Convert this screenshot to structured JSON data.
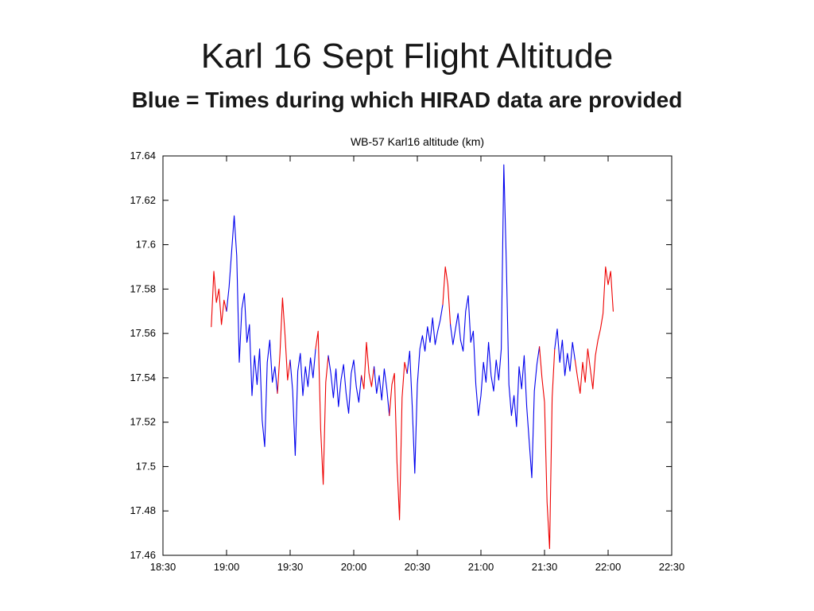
{
  "slide": {
    "title": "Karl 16 Sept Flight Altitude",
    "subtitle": "Blue = Times during which HIRAD data are provided"
  },
  "chart_data": {
    "type": "line",
    "title": "WB-57 Karl16 altitude (km)",
    "xlabel": "",
    "ylabel": "",
    "xlim": [
      18.5,
      22.5
    ],
    "ylim": [
      17.46,
      17.64
    ],
    "grid": false,
    "x_ticks": {
      "values": [
        18.5,
        19.0,
        19.5,
        20.0,
        20.5,
        21.0,
        21.5,
        22.0,
        22.5
      ],
      "labels": [
        "18:30",
        "19:00",
        "19:30",
        "20:00",
        "20:30",
        "21:00",
        "21:30",
        "22:00",
        "22:30"
      ]
    },
    "y_ticks": {
      "values": [
        17.46,
        17.48,
        17.5,
        17.52,
        17.54,
        17.56,
        17.58,
        17.6,
        17.62,
        17.64
      ],
      "labels": [
        "17.46",
        "17.48",
        "17.5",
        "17.52",
        "17.54",
        "17.56",
        "17.58",
        "17.6",
        "17.62",
        "17.64"
      ]
    },
    "colors": {
      "hirad_provided": "#0000ee",
      "no_hirad": "#ee0000",
      "axis": "#000000"
    },
    "red_intervals": [
      [
        18.88,
        19.005
      ],
      [
        19.41,
        19.5
      ],
      [
        19.69,
        19.79
      ],
      [
        20.07,
        20.15
      ],
      [
        20.29,
        20.41
      ],
      [
        20.69,
        20.77
      ],
      [
        21.47,
        21.57
      ],
      [
        21.73,
        22.04
      ]
    ],
    "series": [
      {
        "name": "WB-57 altitude",
        "points": [
          [
            18.88,
            17.563
          ],
          [
            18.9,
            17.588
          ],
          [
            18.92,
            17.574
          ],
          [
            18.94,
            17.58
          ],
          [
            18.96,
            17.564
          ],
          [
            18.98,
            17.575
          ],
          [
            19.0,
            17.57
          ],
          [
            19.02,
            17.581
          ],
          [
            19.04,
            17.597
          ],
          [
            19.06,
            17.613
          ],
          [
            19.08,
            17.595
          ],
          [
            19.1,
            17.547
          ],
          [
            19.12,
            17.571
          ],
          [
            19.14,
            17.578
          ],
          [
            19.16,
            17.556
          ],
          [
            19.18,
            17.564
          ],
          [
            19.2,
            17.532
          ],
          [
            19.22,
            17.55
          ],
          [
            19.24,
            17.537
          ],
          [
            19.26,
            17.553
          ],
          [
            19.28,
            17.521
          ],
          [
            19.3,
            17.509
          ],
          [
            19.32,
            17.547
          ],
          [
            19.34,
            17.557
          ],
          [
            19.36,
            17.538
          ],
          [
            19.38,
            17.545
          ],
          [
            19.4,
            17.533
          ],
          [
            19.42,
            17.551
          ],
          [
            19.44,
            17.576
          ],
          [
            19.46,
            17.559
          ],
          [
            19.48,
            17.539
          ],
          [
            19.5,
            17.548
          ],
          [
            19.52,
            17.534
          ],
          [
            19.54,
            17.505
          ],
          [
            19.56,
            17.543
          ],
          [
            19.58,
            17.551
          ],
          [
            19.6,
            17.532
          ],
          [
            19.62,
            17.545
          ],
          [
            19.64,
            17.536
          ],
          [
            19.66,
            17.549
          ],
          [
            19.68,
            17.54
          ],
          [
            19.7,
            17.553
          ],
          [
            19.72,
            17.561
          ],
          [
            19.74,
            17.517
          ],
          [
            19.76,
            17.492
          ],
          [
            19.78,
            17.538
          ],
          [
            19.8,
            17.55
          ],
          [
            19.82,
            17.542
          ],
          [
            19.84,
            17.531
          ],
          [
            19.86,
            17.544
          ],
          [
            19.88,
            17.527
          ],
          [
            19.9,
            17.539
          ],
          [
            19.92,
            17.546
          ],
          [
            19.94,
            17.533
          ],
          [
            19.96,
            17.524
          ],
          [
            19.98,
            17.542
          ],
          [
            20.0,
            17.548
          ],
          [
            20.02,
            17.536
          ],
          [
            20.04,
            17.529
          ],
          [
            20.06,
            17.541
          ],
          [
            20.08,
            17.535
          ],
          [
            20.1,
            17.556
          ],
          [
            20.12,
            17.542
          ],
          [
            20.14,
            17.536
          ],
          [
            20.16,
            17.545
          ],
          [
            20.18,
            17.533
          ],
          [
            20.2,
            17.541
          ],
          [
            20.22,
            17.53
          ],
          [
            20.24,
            17.544
          ],
          [
            20.26,
            17.535
          ],
          [
            20.28,
            17.523
          ],
          [
            20.3,
            17.537
          ],
          [
            20.32,
            17.542
          ],
          [
            20.34,
            17.502
          ],
          [
            20.36,
            17.476
          ],
          [
            20.38,
            17.531
          ],
          [
            20.4,
            17.547
          ],
          [
            20.42,
            17.542
          ],
          [
            20.44,
            17.552
          ],
          [
            20.46,
            17.527
          ],
          [
            20.48,
            17.497
          ],
          [
            20.5,
            17.537
          ],
          [
            20.52,
            17.553
          ],
          [
            20.54,
            17.559
          ],
          [
            20.56,
            17.552
          ],
          [
            20.58,
            17.563
          ],
          [
            20.6,
            17.556
          ],
          [
            20.62,
            17.567
          ],
          [
            20.64,
            17.555
          ],
          [
            20.66,
            17.561
          ],
          [
            20.68,
            17.566
          ],
          [
            20.7,
            17.573
          ],
          [
            20.72,
            17.59
          ],
          [
            20.74,
            17.582
          ],
          [
            20.76,
            17.564
          ],
          [
            20.78,
            17.555
          ],
          [
            20.8,
            17.562
          ],
          [
            20.82,
            17.569
          ],
          [
            20.84,
            17.557
          ],
          [
            20.86,
            17.552
          ],
          [
            20.88,
            17.57
          ],
          [
            20.9,
            17.577
          ],
          [
            20.92,
            17.556
          ],
          [
            20.94,
            17.561
          ],
          [
            20.96,
            17.537
          ],
          [
            20.98,
            17.523
          ],
          [
            21.0,
            17.532
          ],
          [
            21.02,
            17.547
          ],
          [
            21.04,
            17.538
          ],
          [
            21.06,
            17.556
          ],
          [
            21.08,
            17.541
          ],
          [
            21.1,
            17.534
          ],
          [
            21.12,
            17.548
          ],
          [
            21.14,
            17.539
          ],
          [
            21.16,
            17.553
          ],
          [
            21.18,
            17.636
          ],
          [
            21.2,
            17.591
          ],
          [
            21.22,
            17.537
          ],
          [
            21.24,
            17.523
          ],
          [
            21.26,
            17.532
          ],
          [
            21.28,
            17.518
          ],
          [
            21.3,
            17.545
          ],
          [
            21.32,
            17.535
          ],
          [
            21.34,
            17.55
          ],
          [
            21.36,
            17.527
          ],
          [
            21.38,
            17.511
          ],
          [
            21.4,
            17.495
          ],
          [
            21.42,
            17.534
          ],
          [
            21.44,
            17.546
          ],
          [
            21.46,
            17.554
          ],
          [
            21.48,
            17.54
          ],
          [
            21.5,
            17.529
          ],
          [
            21.52,
            17.484
          ],
          [
            21.54,
            17.463
          ],
          [
            21.56,
            17.531
          ],
          [
            21.58,
            17.553
          ],
          [
            21.6,
            17.562
          ],
          [
            21.62,
            17.547
          ],
          [
            21.64,
            17.557
          ],
          [
            21.66,
            17.541
          ],
          [
            21.68,
            17.551
          ],
          [
            21.7,
            17.543
          ],
          [
            21.72,
            17.556
          ],
          [
            21.74,
            17.548
          ],
          [
            21.76,
            17.54
          ],
          [
            21.78,
            17.533
          ],
          [
            21.8,
            17.547
          ],
          [
            21.82,
            17.538
          ],
          [
            21.84,
            17.553
          ],
          [
            21.86,
            17.544
          ],
          [
            21.88,
            17.535
          ],
          [
            21.9,
            17.55
          ],
          [
            21.92,
            17.557
          ],
          [
            21.94,
            17.562
          ],
          [
            21.96,
            17.569
          ],
          [
            21.98,
            17.59
          ],
          [
            22.0,
            17.582
          ],
          [
            22.02,
            17.588
          ],
          [
            22.04,
            17.57
          ]
        ]
      }
    ]
  }
}
